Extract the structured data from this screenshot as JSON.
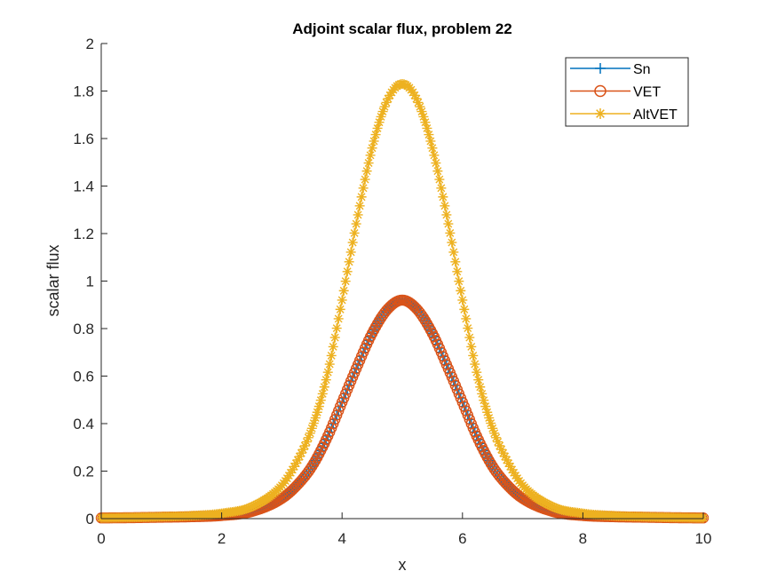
{
  "figure_background": "#ffffff",
  "chart_data": {
    "type": "line",
    "title": "Adjoint scalar flux, problem 22",
    "xlabel": "x",
    "ylabel": "scalar flux",
    "xlim": [
      0,
      10
    ],
    "ylim": [
      0,
      2
    ],
    "xticks": [
      0,
      2,
      4,
      6,
      8,
      10
    ],
    "yticks": [
      0,
      0.2,
      0.4,
      0.6,
      0.8,
      1,
      1.2,
      1.4,
      1.6,
      1.8,
      2
    ],
    "grid": false,
    "legend_position": "top-right",
    "x": [
      0,
      0.5,
      1,
      1.5,
      2,
      2.5,
      3,
      3.25,
      3.5,
      3.75,
      4,
      4.25,
      4.5,
      4.75,
      5,
      5.25,
      5.5,
      5.75,
      6,
      6.25,
      6.5,
      6.75,
      7,
      7.5,
      8,
      8.5,
      9,
      9.5,
      10
    ],
    "series": [
      {
        "name": "Sn",
        "marker": "plus",
        "color": "#0072BD",
        "values": [
          0.003,
          0.004,
          0.006,
          0.008,
          0.013,
          0.03,
          0.085,
          0.14,
          0.22,
          0.34,
          0.49,
          0.64,
          0.78,
          0.88,
          0.92,
          0.88,
          0.78,
          0.64,
          0.49,
          0.34,
          0.22,
          0.14,
          0.085,
          0.03,
          0.013,
          0.008,
          0.006,
          0.004,
          0.003
        ]
      },
      {
        "name": "VET",
        "marker": "circle",
        "color": "#D95319",
        "values": [
          0.003,
          0.004,
          0.006,
          0.008,
          0.013,
          0.03,
          0.085,
          0.14,
          0.22,
          0.34,
          0.49,
          0.64,
          0.78,
          0.88,
          0.92,
          0.88,
          0.78,
          0.64,
          0.49,
          0.34,
          0.22,
          0.14,
          0.085,
          0.03,
          0.013,
          0.008,
          0.006,
          0.004,
          0.003
        ]
      },
      {
        "name": "AltVET",
        "marker": "asterisk",
        "color": "#EDB120",
        "values": [
          0.003,
          0.005,
          0.008,
          0.012,
          0.022,
          0.05,
          0.14,
          0.24,
          0.38,
          0.6,
          0.92,
          1.26,
          1.56,
          1.76,
          1.83,
          1.76,
          1.56,
          1.26,
          0.92,
          0.6,
          0.38,
          0.24,
          0.14,
          0.05,
          0.022,
          0.012,
          0.008,
          0.005,
          0.003
        ]
      }
    ]
  }
}
